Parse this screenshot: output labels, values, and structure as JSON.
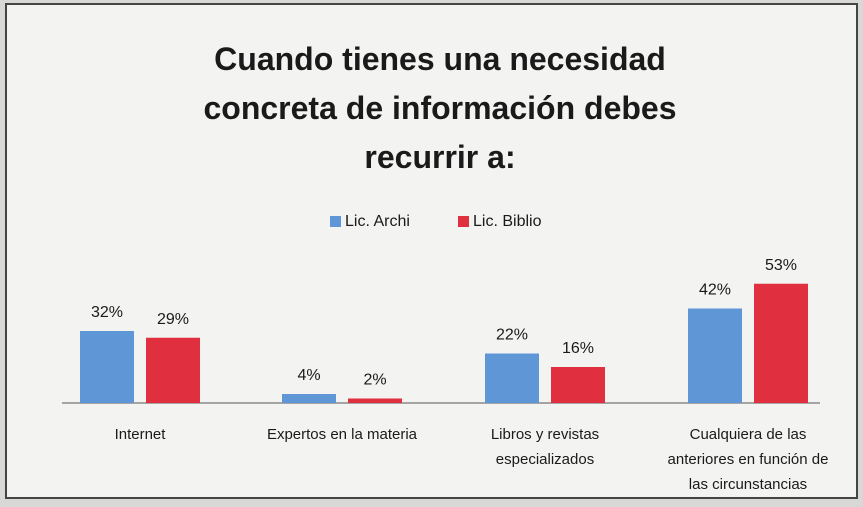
{
  "chart_data": {
    "type": "bar",
    "title": "Cuando tienes una necesidad concreta de información debes recurrir a:",
    "categories": [
      "Internet",
      "Expertos en la materia",
      "Libros y revistas especializados",
      "Cualquiera de las anteriores en función de las circunstancias"
    ],
    "series": [
      {
        "name": "Lic. Archi",
        "color": "#5f97d6",
        "values": [
          32,
          4,
          22,
          42
        ],
        "value_labels": [
          "32%",
          "4%",
          "22%",
          "42%"
        ]
      },
      {
        "name": "Lic. Biblio",
        "color": "#e0303f",
        "values": [
          29,
          2,
          16,
          53
        ],
        "value_labels": [
          "29%",
          "2%",
          "16%",
          "53%"
        ]
      }
    ],
    "legend": "top"
  }
}
